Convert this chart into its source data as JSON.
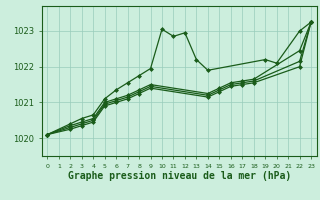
{
  "background_color": "#cceedd",
  "grid_color": "#99ccbb",
  "line_color": "#1a5c1a",
  "xlabel": "Graphe pression niveau de la mer (hPa)",
  "xlabel_fontsize": 7,
  "xlim": [
    -0.5,
    23.5
  ],
  "ylim": [
    1019.5,
    1023.7
  ],
  "yticks": [
    1020,
    1021,
    1022,
    1023
  ],
  "xticks": [
    0,
    1,
    2,
    3,
    4,
    5,
    6,
    7,
    8,
    9,
    10,
    11,
    12,
    13,
    14,
    15,
    16,
    17,
    18,
    19,
    20,
    21,
    22,
    23
  ],
  "lines": [
    {
      "x": [
        0,
        2,
        3,
        4,
        5,
        6,
        7,
        8,
        9,
        10,
        11,
        12,
        13,
        14,
        19,
        20,
        22,
        23
      ],
      "y": [
        1020.1,
        1020.4,
        1020.55,
        1020.65,
        1021.1,
        1021.35,
        1021.55,
        1021.75,
        1021.95,
        1023.05,
        1022.85,
        1022.95,
        1022.2,
        1021.9,
        1022.2,
        1022.1,
        1023.0,
        1023.25
      ]
    },
    {
      "x": [
        0,
        2,
        3,
        4,
        5,
        6,
        7,
        8,
        9,
        14,
        15,
        16,
        17,
        18,
        22,
        23
      ],
      "y": [
        1020.1,
        1020.35,
        1020.45,
        1020.55,
        1021.0,
        1021.1,
        1021.2,
        1021.35,
        1021.5,
        1021.25,
        1021.4,
        1021.55,
        1021.6,
        1021.65,
        1022.45,
        1023.25
      ]
    },
    {
      "x": [
        0,
        2,
        3,
        4,
        5,
        6,
        7,
        8,
        9,
        14,
        15,
        16,
        17,
        18,
        22,
        23
      ],
      "y": [
        1020.1,
        1020.3,
        1020.4,
        1020.5,
        1020.95,
        1021.05,
        1021.15,
        1021.3,
        1021.45,
        1021.2,
        1021.35,
        1021.5,
        1021.55,
        1021.6,
        1022.15,
        1023.25
      ]
    },
    {
      "x": [
        0,
        2,
        3,
        4,
        5,
        6,
        7,
        8,
        9,
        14,
        15,
        16,
        17,
        18,
        22,
        23
      ],
      "y": [
        1020.1,
        1020.25,
        1020.35,
        1020.45,
        1020.9,
        1021.0,
        1021.1,
        1021.25,
        1021.4,
        1021.15,
        1021.3,
        1021.45,
        1021.5,
        1021.55,
        1022.0,
        1023.25
      ]
    }
  ],
  "marker": "D",
  "markersize": 2.0,
  "linewidth": 0.9
}
